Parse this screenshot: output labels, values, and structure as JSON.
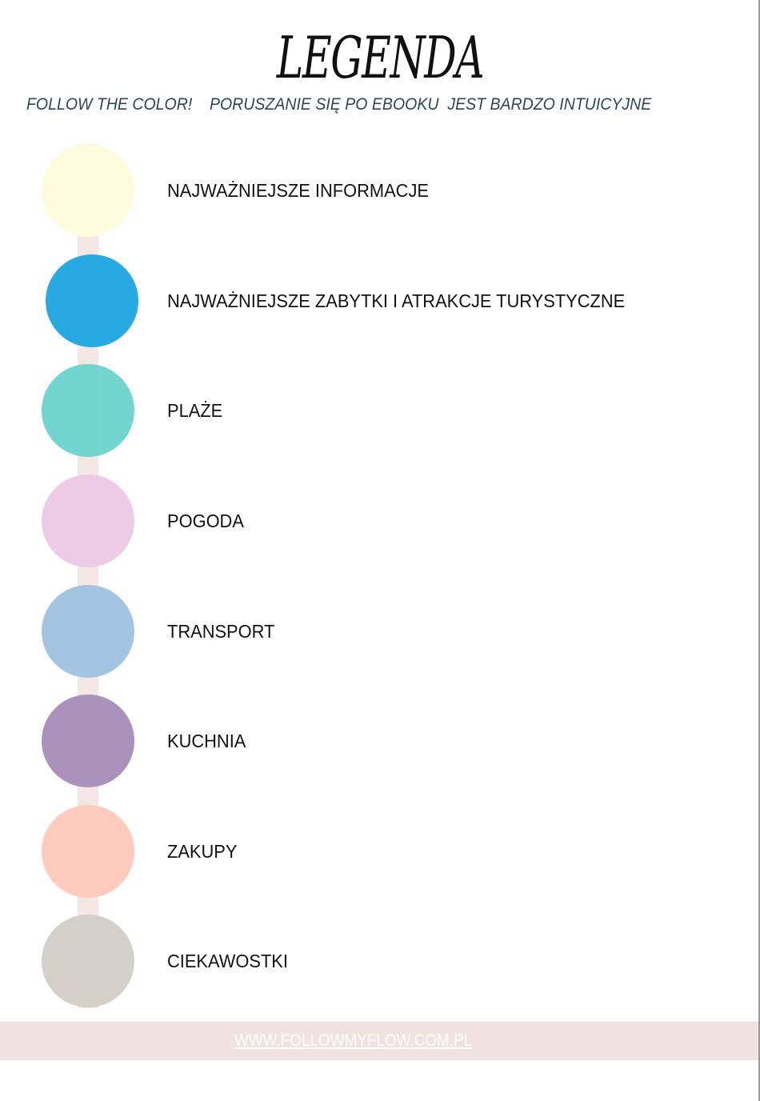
{
  "title": "LEGENDA",
  "subtitle": "FOLLOW THE COLOR!    PORUSZANIE SIĘ PO EBOOKU  JEST BARDZO INTUICYJNE",
  "items": [
    {
      "label": "NAJWAŻNIEJSZE INFORMACJE",
      "color": "#fffbdf"
    },
    {
      "label": "NAJWAŻNIEJSZE ZABYTKI I ATRAKCJE TURYSTYCZNE",
      "color": "#27a9e1"
    },
    {
      "label": "PLAŻE",
      "color": "#6ad3cc"
    },
    {
      "label": "POGODA",
      "color": "#edcbe7"
    },
    {
      "label": "TRANSPORT",
      "color": "#a3c5e1"
    },
    {
      "label": "KUCHNIA",
      "color": "#aa92bd"
    },
    {
      "label": "ZAKUPY",
      "color": "#ffcbbf"
    },
    {
      "label": "CIEKAWOSTKI",
      "color": "#d4cfc7"
    }
  ],
  "footer": {
    "link": "WWW.FOLLOWMYFLOW.COM.PL"
  }
}
